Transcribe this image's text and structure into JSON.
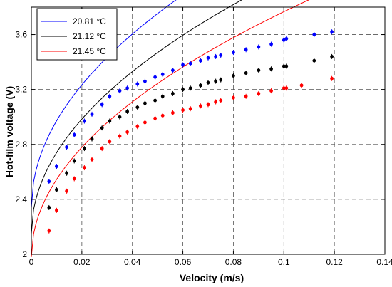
{
  "chart_data": {
    "type": "scatter",
    "title": "",
    "xlabel": "Velocity (m/s)",
    "ylabel": "Hot-film voltage (V)",
    "xlim": [
      0,
      0.14
    ],
    "ylim": [
      2,
      3.8
    ],
    "xticks": [
      0,
      0.02,
      0.04,
      0.06,
      0.08,
      0.1,
      0.12,
      0.14
    ],
    "xtick_labels": [
      "0",
      "0.02",
      "0.04",
      "0.06",
      "0.08",
      "0.1",
      "0.12",
      "0.14"
    ],
    "yticks": [
      2,
      2.4,
      2.8,
      3.2,
      3.6
    ],
    "ytick_labels": [
      "2",
      "2.4",
      "2.8",
      "3.2",
      "3.6"
    ],
    "grid": "dashed",
    "legend": "top-left",
    "series": [
      {
        "name": "20.81 °C",
        "color": "#0000ff",
        "x": [
          0.007,
          0.01,
          0.014,
          0.017,
          0.021,
          0.024,
          0.028,
          0.031,
          0.035,
          0.038,
          0.042,
          0.045,
          0.049,
          0.052,
          0.056,
          0.06,
          0.063,
          0.067,
          0.07,
          0.073,
          0.075,
          0.08,
          0.085,
          0.09,
          0.095,
          0.1,
          0.101,
          0.112,
          0.119
        ],
        "y": [
          2.53,
          2.64,
          2.78,
          2.87,
          2.97,
          3.02,
          3.09,
          3.15,
          3.19,
          3.21,
          3.24,
          3.26,
          3.29,
          3.31,
          3.34,
          3.38,
          3.39,
          3.41,
          3.43,
          3.44,
          3.45,
          3.47,
          3.49,
          3.51,
          3.53,
          3.56,
          3.57,
          3.6,
          3.62
        ]
      },
      {
        "name": "21.12 °C",
        "color": "#000000",
        "x": [
          0.007,
          0.01,
          0.014,
          0.017,
          0.021,
          0.024,
          0.028,
          0.031,
          0.035,
          0.038,
          0.042,
          0.045,
          0.049,
          0.052,
          0.056,
          0.06,
          0.063,
          0.067,
          0.07,
          0.073,
          0.075,
          0.08,
          0.085,
          0.09,
          0.095,
          0.1,
          0.101,
          0.112,
          0.119
        ],
        "y": [
          2.34,
          2.47,
          2.59,
          2.68,
          2.77,
          2.84,
          2.92,
          2.97,
          3.0,
          3.04,
          3.07,
          3.1,
          3.12,
          3.15,
          3.17,
          3.2,
          3.21,
          3.23,
          3.25,
          3.26,
          3.27,
          3.3,
          3.32,
          3.34,
          3.35,
          3.37,
          3.37,
          3.41,
          3.44
        ]
      },
      {
        "name": "21.45 °C",
        "color": "#ff0000",
        "x": [
          0.007,
          0.01,
          0.014,
          0.017,
          0.021,
          0.024,
          0.028,
          0.031,
          0.035,
          0.038,
          0.042,
          0.045,
          0.049,
          0.052,
          0.056,
          0.06,
          0.063,
          0.067,
          0.07,
          0.073,
          0.075,
          0.08,
          0.085,
          0.09,
          0.095,
          0.1,
          0.101,
          0.107,
          0.119
        ],
        "y": [
          2.17,
          2.32,
          2.46,
          2.55,
          2.63,
          2.69,
          2.77,
          2.82,
          2.86,
          2.89,
          2.93,
          2.96,
          2.99,
          3.01,
          3.03,
          3.05,
          3.06,
          3.08,
          3.09,
          3.11,
          3.12,
          3.14,
          3.15,
          3.17,
          3.19,
          3.21,
          3.21,
          3.23,
          3.28
        ]
      }
    ],
    "fit_curves": [
      {
        "color": "#0000ff",
        "a": 2.34,
        "b": 6.32,
        "c": 0.5
      },
      {
        "color": "#000000",
        "a": 2.15,
        "b": 5.9,
        "c": 0.5
      },
      {
        "color": "#ff0000",
        "a": 1.98,
        "b": 5.65,
        "c": 0.5
      }
    ]
  }
}
